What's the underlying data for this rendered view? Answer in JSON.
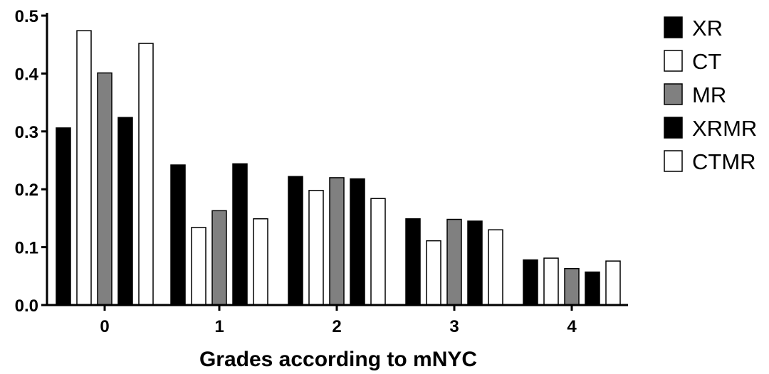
{
  "chart_data": {
    "type": "bar",
    "title": "",
    "xlabel": "Grades according to mNYC",
    "ylabel": "",
    "categories": [
      "0",
      "1",
      "2",
      "3",
      "4"
    ],
    "series": [
      {
        "name": "XR",
        "color": "#000000",
        "values": [
          0.306,
          0.242,
          0.222,
          0.149,
          0.078
        ]
      },
      {
        "name": "CT",
        "color": "#ffffff",
        "values": [
          0.474,
          0.134,
          0.198,
          0.111,
          0.081
        ]
      },
      {
        "name": "MR",
        "color": "#808080",
        "values": [
          0.401,
          0.163,
          0.22,
          0.148,
          0.063
        ]
      },
      {
        "name": "XRMR",
        "color": "#000000",
        "values": [
          0.324,
          0.244,
          0.218,
          0.145,
          0.057
        ]
      },
      {
        "name": "CTMR",
        "color": "#ffffff",
        "values": [
          0.452,
          0.149,
          0.184,
          0.13,
          0.076
        ]
      }
    ],
    "ylim": [
      0,
      0.5
    ],
    "yticks": [
      "0.0",
      "0.1",
      "0.2",
      "0.3",
      "0.4",
      "0.5"
    ],
    "grid": false,
    "legend_position": "right"
  }
}
